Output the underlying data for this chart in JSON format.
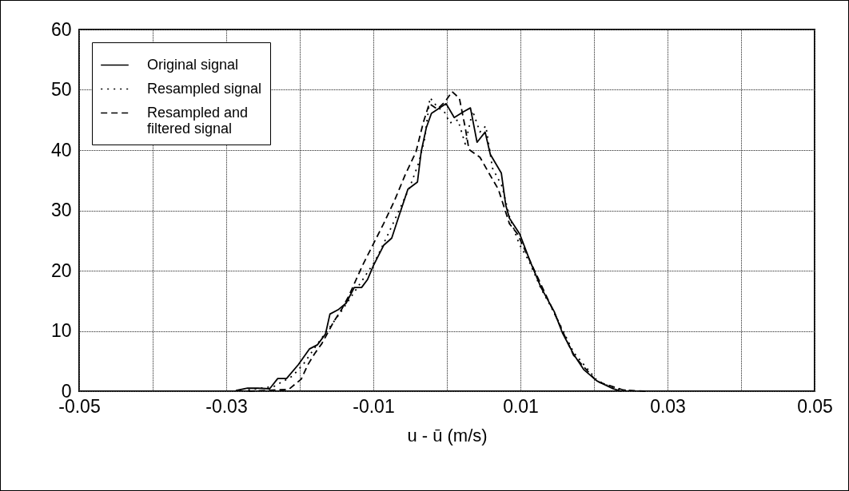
{
  "chart_data": {
    "type": "line",
    "xlabel": "u - ū (m/s)",
    "xlim": [
      -0.05,
      0.05
    ],
    "ylim": [
      0,
      60
    ],
    "xticks": [
      -0.05,
      {
        "value": -0.04,
        "label": null
      },
      -0.03,
      {
        "value": -0.02,
        "label": null
      },
      -0.01,
      {
        "value": 0,
        "label": null
      },
      0.01,
      {
        "value": 0.02,
        "label": null
      },
      0.03,
      {
        "value": 0.04,
        "label": null
      },
      0.05
    ],
    "yticks": [
      0,
      10,
      20,
      30,
      40,
      50,
      60
    ],
    "grid": true,
    "legend": "top left",
    "series": [
      {
        "name": "Original signal",
        "color": "#000000",
        "line_style": "solid",
        "x": [
          -0.0287,
          -0.0271,
          -0.0257,
          -0.0241,
          -0.023,
          -0.0218,
          -0.0202,
          -0.0187,
          -0.0176,
          -0.0165,
          -0.0159,
          -0.0148,
          -0.0137,
          -0.0126,
          -0.0116,
          -0.0108,
          -0.01,
          -0.0086,
          -0.0075,
          -0.0064,
          -0.0053,
          -0.004,
          -0.0035,
          -0.0028,
          -0.0021,
          -0.001,
          -0.0001,
          0.001,
          0.0023,
          0.0032,
          0.0041,
          0.0052,
          0.0059,
          0.0074,
          0.008,
          0.0085,
          0.0099,
          0.0113,
          0.0128,
          0.0146,
          0.0157,
          0.0172,
          0.0186,
          0.0204,
          0.0226,
          0.0237
        ],
        "values": [
          0.1,
          0.5,
          0.5,
          0.4,
          2.1,
          2.1,
          4.4,
          7.0,
          7.7,
          9.5,
          12.8,
          13.5,
          14.6,
          17.2,
          17.2,
          18.5,
          20.8,
          24.2,
          25.4,
          29.5,
          33.5,
          34.7,
          39.7,
          43.7,
          46.1,
          47.0,
          47.7,
          45.4,
          46.4,
          47.0,
          41.3,
          43.0,
          39.3,
          36.2,
          30.9,
          28.7,
          26.1,
          21.6,
          17.2,
          13.2,
          9.7,
          6.2,
          3.6,
          1.7,
          0.4,
          0
        ]
      },
      {
        "name": "Resampled signal",
        "color": "#000000",
        "line_style": "dotted",
        "x": [
          -0.027,
          -0.0235,
          -0.021,
          -0.0195,
          -0.0178,
          -0.016,
          -0.0145,
          -0.012,
          -0.0098,
          -0.0082,
          -0.0065,
          -0.005,
          -0.0038,
          -0.003,
          -0.0023,
          -0.0012,
          -0.0004,
          0.0004,
          0.0015,
          0.0025,
          0.0035,
          0.0045,
          0.0053,
          0.0062,
          0.0075,
          0.0085,
          0.0098,
          0.0112,
          0.0128,
          0.0146,
          0.0172,
          0.0204,
          0.0226,
          0.025
        ],
        "values": [
          0.2,
          0.8,
          2.5,
          4.5,
          7.5,
          10.5,
          13,
          17.5,
          21.5,
          25.5,
          30,
          34,
          38,
          42,
          48.7,
          47,
          46.5,
          44.5,
          45,
          41,
          46.5,
          43,
          44,
          37,
          34,
          29,
          24.5,
          21.5,
          17,
          13,
          6.5,
          1.8,
          0.5,
          0
        ]
      },
      {
        "name": "Resampled and\nfiltered signal",
        "color": "#000000",
        "line_style": "dashed",
        "x": [
          -0.027,
          -0.0215,
          -0.0198,
          -0.0189,
          -0.018,
          -0.017,
          -0.0154,
          -0.0143,
          -0.0133,
          -0.0115,
          -0.0086,
          -0.0072,
          -0.0057,
          -0.0042,
          -0.0032,
          -0.0024,
          -0.0013,
          -0.0002,
          0.0007,
          0.0017,
          0.0025,
          0.003,
          0.0045,
          0.0059,
          0.007,
          0.0085,
          0.0096,
          0.0113,
          0.0146,
          0.0172,
          0.0204,
          0.024,
          0.027
        ],
        "values": [
          0,
          0.3,
          2,
          4.4,
          6.2,
          7.9,
          11.5,
          13.6,
          15.9,
          20.8,
          27.8,
          31.4,
          35.8,
          39.7,
          44.6,
          47.7,
          46.8,
          48.1,
          49.7,
          48.6,
          43.7,
          40.1,
          38.8,
          35.8,
          33.5,
          27.8,
          26.1,
          21.6,
          13,
          6,
          1.6,
          0.2,
          0
        ]
      }
    ]
  }
}
